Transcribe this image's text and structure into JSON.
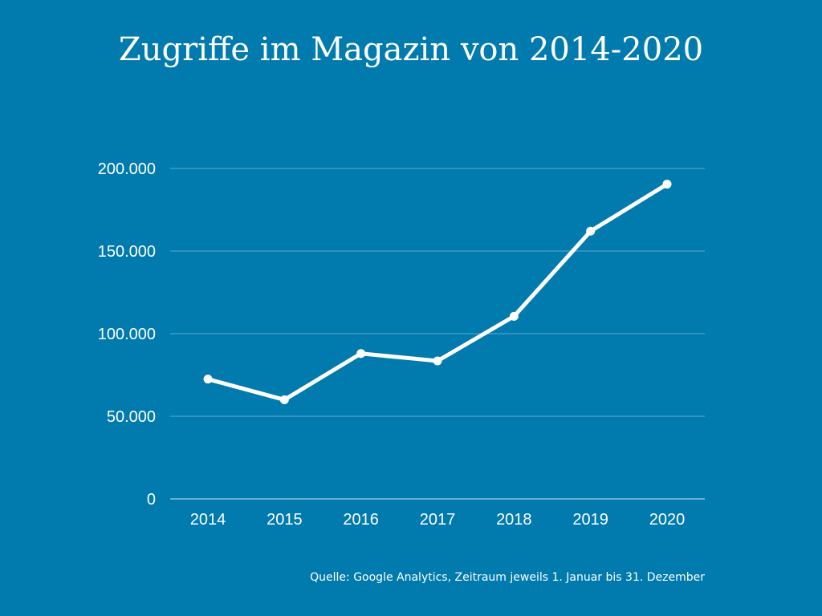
{
  "chart_data": {
    "type": "line",
    "title": "Zugriffe im Magazin von 2014-2020",
    "xlabel": "",
    "ylabel": "",
    "categories": [
      "2014",
      "2015",
      "2016",
      "2017",
      "2018",
      "2019",
      "2020"
    ],
    "series": [
      {
        "values": [
          72500,
          60000,
          88000,
          83500,
          110500,
          162000,
          190500
        ]
      }
    ],
    "ylim": [
      0,
      200000
    ],
    "yticks": [
      0,
      50000,
      100000,
      150000,
      200000
    ],
    "ytick_labels": [
      "0",
      "50.000",
      "100.000",
      "150.000",
      "200.000"
    ],
    "grid": true,
    "legend": "none",
    "source_note": "Quelle: Google Analytics, Zeitraum jeweils 1. Januar bis 31. Dezember",
    "colors": {
      "background": "#017BAE",
      "line": "#FFFFFF",
      "grid": "#5FA8CC",
      "axis": "#CFE6F1"
    }
  }
}
